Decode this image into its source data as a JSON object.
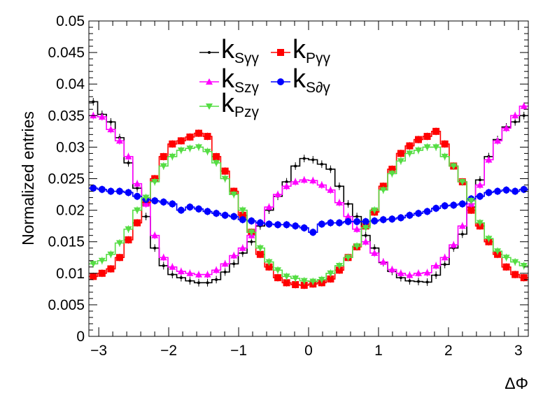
{
  "chart_data": {
    "type": "line",
    "xlabel": "ΔΦ",
    "ylabel": "Normalized entries",
    "xlim": [
      -3.1416,
      3.1416
    ],
    "ylim": [
      0,
      0.05
    ],
    "x_ticks": [
      -3,
      -2,
      -1,
      0,
      1,
      2,
      3
    ],
    "x_tick_labels": [
      "−3",
      "−2",
      "−1",
      "0",
      "1",
      "2",
      "3"
    ],
    "y_ticks": [
      0,
      0.005,
      0.01,
      0.015,
      0.02,
      0.025,
      0.03,
      0.035,
      0.04,
      0.045,
      0.05
    ],
    "y_tick_labels": [
      "0",
      "0.005",
      "0.01",
      "0.015",
      "0.02",
      "0.025",
      "0.03",
      "0.035",
      "0.04",
      "0.045",
      "0.05"
    ],
    "grid": false,
    "legend_position": "top-center",
    "n_bins": 50,
    "series": [
      {
        "name_main": "k",
        "name_sub": "Sγγ",
        "color": "#000000",
        "marker": "dot",
        "values": [
          0.0372,
          0.0352,
          0.034,
          0.0315,
          0.0275,
          0.0235,
          0.019,
          0.014,
          0.0112,
          0.0098,
          0.0093,
          0.0088,
          0.0085,
          0.0085,
          0.009,
          0.0102,
          0.0115,
          0.0132,
          0.015,
          0.0175,
          0.02,
          0.0222,
          0.0245,
          0.027,
          0.0282,
          0.028,
          0.0273,
          0.0265,
          0.0238,
          0.021,
          0.019,
          0.016,
          0.014,
          0.0117,
          0.0103,
          0.0093,
          0.0088,
          0.0087,
          0.0086,
          0.0097,
          0.0114,
          0.014,
          0.0162,
          0.0205,
          0.0248,
          0.0285,
          0.0312,
          0.0332,
          0.034,
          0.035
        ]
      },
      {
        "name_main": "k",
        "name_sub": "Pγγ",
        "color": "#ff0000",
        "marker": "square",
        "values": [
          0.0095,
          0.01,
          0.0107,
          0.0125,
          0.0153,
          0.018,
          0.0212,
          0.025,
          0.0285,
          0.0305,
          0.031,
          0.0316,
          0.0322,
          0.0317,
          0.0285,
          0.0262,
          0.023,
          0.0192,
          0.0165,
          0.013,
          0.011,
          0.0093,
          0.0085,
          0.0082,
          0.0081,
          0.0083,
          0.0085,
          0.0091,
          0.0105,
          0.0125,
          0.0142,
          0.0175,
          0.0197,
          0.0238,
          0.0265,
          0.029,
          0.0302,
          0.0312,
          0.0317,
          0.0325,
          0.0305,
          0.027,
          0.0245,
          0.02,
          0.0175,
          0.015,
          0.013,
          0.011,
          0.0098,
          0.0093
        ]
      },
      {
        "name_main": "k",
        "name_sub": "Szγ",
        "color": "#ff00ff",
        "marker": "triangle-up",
        "values": [
          0.035,
          0.0348,
          0.0328,
          0.031,
          0.0285,
          0.0242,
          0.021,
          0.016,
          0.0125,
          0.011,
          0.0103,
          0.01,
          0.0098,
          0.0098,
          0.0105,
          0.0115,
          0.0128,
          0.014,
          0.016,
          0.018,
          0.0205,
          0.0225,
          0.0238,
          0.0245,
          0.0248,
          0.0247,
          0.024,
          0.0232,
          0.0212,
          0.019,
          0.017,
          0.015,
          0.0132,
          0.0118,
          0.0106,
          0.01,
          0.0097,
          0.01,
          0.0101,
          0.0112,
          0.0125,
          0.0145,
          0.0175,
          0.021,
          0.024,
          0.028,
          0.031,
          0.033,
          0.035,
          0.0365
        ]
      },
      {
        "name_main": "k",
        "name_sub": "S∂γ",
        "color": "#0000ff",
        "marker": "circle",
        "values": [
          0.0235,
          0.0233,
          0.023,
          0.023,
          0.0228,
          0.0222,
          0.0217,
          0.0215,
          0.0213,
          0.021,
          0.02,
          0.0205,
          0.0202,
          0.0198,
          0.0195,
          0.0192,
          0.019,
          0.0185,
          0.0183,
          0.018,
          0.0178,
          0.0177,
          0.0177,
          0.0175,
          0.0172,
          0.0165,
          0.0178,
          0.018,
          0.018,
          0.0182,
          0.0182,
          0.0182,
          0.0183,
          0.0185,
          0.0186,
          0.0188,
          0.0192,
          0.0195,
          0.0198,
          0.0203,
          0.0207,
          0.0208,
          0.021,
          0.0218,
          0.0222,
          0.0228,
          0.023,
          0.0232,
          0.023,
          0.0233
        ]
      },
      {
        "name_main": "k",
        "name_sub": "Pzγ",
        "color": "#55dd44",
        "marker": "triangle-down",
        "values": [
          0.0115,
          0.012,
          0.013,
          0.0148,
          0.017,
          0.02,
          0.022,
          0.0245,
          0.027,
          0.0285,
          0.0295,
          0.0298,
          0.03,
          0.0293,
          0.0275,
          0.025,
          0.0225,
          0.02,
          0.0165,
          0.014,
          0.0118,
          0.0105,
          0.0095,
          0.0092,
          0.0088,
          0.0087,
          0.009,
          0.01,
          0.0112,
          0.0125,
          0.0143,
          0.0172,
          0.02,
          0.0232,
          0.0258,
          0.0278,
          0.029,
          0.0295,
          0.03,
          0.03,
          0.0285,
          0.027,
          0.0245,
          0.0215,
          0.018,
          0.0155,
          0.0135,
          0.0125,
          0.0118,
          0.0112
        ]
      }
    ]
  }
}
